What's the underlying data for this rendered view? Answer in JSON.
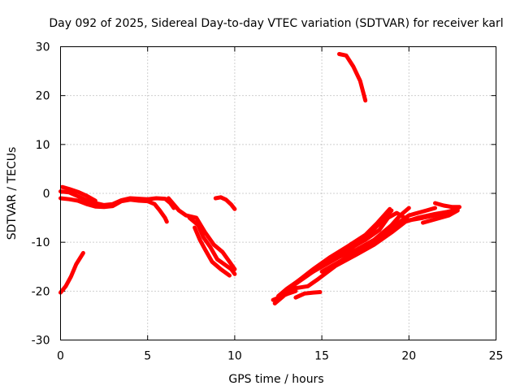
{
  "chart_data": {
    "type": "scatter",
    "title": "Day 092 of 2025, Sidereal Day-to-day VTEC variation (SDTVAR) for receiver karl",
    "xlabel": "GPS time / hours",
    "ylabel": "SDTVAR / TECUs",
    "xlim": [
      0,
      25
    ],
    "ylim": [
      -30,
      30
    ],
    "xticks": [
      0,
      5,
      10,
      15,
      20,
      25
    ],
    "xtick_labels": [
      "0",
      "5",
      "10",
      "15",
      "20",
      "25"
    ],
    "yticks": [
      -30,
      -20,
      -10,
      0,
      10,
      20,
      30
    ],
    "ytick_labels": [
      "-30",
      "-20",
      "-10",
      "0",
      "10",
      "20",
      "30"
    ],
    "grid": true,
    "series_color": "#ff0000",
    "tracks": [
      {
        "name": "track-a",
        "points": [
          [
            0.0,
            -20.3
          ],
          [
            0.3,
            -19.0
          ],
          [
            0.6,
            -17.0
          ],
          [
            0.9,
            -14.5
          ],
          [
            1.3,
            -12.2
          ]
        ]
      },
      {
        "name": "track-b",
        "points": [
          [
            0.0,
            0.4
          ],
          [
            0.5,
            0.2
          ],
          [
            1.0,
            -0.6
          ],
          [
            1.5,
            -1.4
          ],
          [
            2.0,
            -2.0
          ],
          [
            2.5,
            -2.4
          ],
          [
            3.0,
            -2.2
          ],
          [
            3.5,
            -1.4
          ],
          [
            4.0,
            -1.0
          ],
          [
            4.5,
            -1.1
          ],
          [
            5.0,
            -1.2
          ],
          [
            5.5,
            -1.0
          ],
          [
            6.0,
            -1.1
          ],
          [
            6.3,
            -2.0
          ],
          [
            6.5,
            -3.0
          ]
        ]
      },
      {
        "name": "track-c",
        "points": [
          [
            0.0,
            -1.0
          ],
          [
            0.5,
            -1.2
          ],
          [
            1.0,
            -1.5
          ],
          [
            1.5,
            -2.2
          ],
          [
            2.0,
            -2.7
          ],
          [
            2.5,
            -2.8
          ],
          [
            3.0,
            -2.6
          ],
          [
            3.5,
            -1.6
          ],
          [
            4.0,
            -1.3
          ],
          [
            4.5,
            -1.5
          ],
          [
            5.0,
            -1.6
          ],
          [
            5.4,
            -2.2
          ],
          [
            5.7,
            -3.5
          ],
          [
            6.0,
            -5.0
          ],
          [
            6.1,
            -5.8
          ]
        ]
      },
      {
        "name": "track-d",
        "points": [
          [
            0.1,
            1.3
          ],
          [
            0.5,
            0.9
          ],
          [
            1.0,
            0.3
          ],
          [
            1.5,
            -0.5
          ],
          [
            2.0,
            -1.5
          ]
        ]
      },
      {
        "name": "track-e",
        "points": [
          [
            6.2,
            -1.0
          ],
          [
            6.8,
            -3.5
          ],
          [
            7.2,
            -4.5
          ],
          [
            7.8,
            -5.0
          ],
          [
            8.3,
            -8.0
          ],
          [
            8.8,
            -10.5
          ],
          [
            9.3,
            -12.0
          ],
          [
            9.7,
            -14.0
          ],
          [
            10.0,
            -15.5
          ]
        ]
      },
      {
        "name": "track-f",
        "points": [
          [
            7.4,
            -5.0
          ],
          [
            7.9,
            -6.5
          ],
          [
            8.2,
            -9.0
          ],
          [
            8.6,
            -11.0
          ],
          [
            9.0,
            -13.5
          ],
          [
            9.4,
            -14.5
          ],
          [
            9.8,
            -15.5
          ],
          [
            10.0,
            -16.5
          ]
        ]
      },
      {
        "name": "track-g",
        "points": [
          [
            7.7,
            -7.0
          ],
          [
            8.0,
            -9.5
          ],
          [
            8.3,
            -11.5
          ],
          [
            8.7,
            -14.0
          ],
          [
            9.2,
            -15.5
          ],
          [
            9.7,
            -16.8
          ]
        ]
      },
      {
        "name": "track-h",
        "points": [
          [
            8.9,
            -1.0
          ],
          [
            9.2,
            -0.8
          ],
          [
            9.5,
            -1.3
          ],
          [
            9.8,
            -2.3
          ],
          [
            10.0,
            -3.2
          ]
        ]
      },
      {
        "name": "track-i",
        "points": [
          [
            16.0,
            28.5
          ],
          [
            16.4,
            28.2
          ],
          [
            16.8,
            26.0
          ],
          [
            17.2,
            23.0
          ],
          [
            17.5,
            19.0
          ]
        ]
      },
      {
        "name": "track-j",
        "points": [
          [
            12.3,
            -22.5
          ],
          [
            12.8,
            -21.0
          ],
          [
            13.5,
            -18.5
          ],
          [
            14.5,
            -16.0
          ],
          [
            15.5,
            -13.5
          ],
          [
            16.5,
            -11.5
          ],
          [
            17.5,
            -9.5
          ],
          [
            18.3,
            -7.5
          ],
          [
            18.8,
            -5.0
          ],
          [
            19.3,
            -4.0
          ],
          [
            20.0,
            -5.5
          ],
          [
            20.8,
            -5.0
          ],
          [
            21.5,
            -4.5
          ],
          [
            22.2,
            -3.8
          ],
          [
            22.8,
            -3.2
          ]
        ]
      },
      {
        "name": "track-k",
        "points": [
          [
            12.5,
            -21.0
          ],
          [
            13.0,
            -19.5
          ],
          [
            14.0,
            -17.0
          ],
          [
            15.0,
            -14.5
          ],
          [
            16.0,
            -12.5
          ],
          [
            17.0,
            -10.5
          ],
          [
            17.8,
            -8.0
          ],
          [
            18.5,
            -5.5
          ],
          [
            19.0,
            -3.5
          ]
        ]
      },
      {
        "name": "track-l",
        "points": [
          [
            13.0,
            -20.0
          ],
          [
            13.6,
            -18.0
          ],
          [
            14.5,
            -15.5
          ],
          [
            15.5,
            -13.0
          ],
          [
            16.5,
            -10.8
          ],
          [
            17.5,
            -8.5
          ],
          [
            18.2,
            -6.0
          ],
          [
            18.9,
            -3.2
          ]
        ]
      },
      {
        "name": "track-m",
        "points": [
          [
            13.3,
            -19.5
          ],
          [
            14.2,
            -19.0
          ],
          [
            14.8,
            -17.5
          ],
          [
            15.8,
            -14.8
          ],
          [
            17.0,
            -12.5
          ],
          [
            18.0,
            -10.5
          ],
          [
            19.0,
            -8.0
          ],
          [
            19.8,
            -5.8
          ],
          [
            20.5,
            -5.0
          ],
          [
            21.5,
            -4.2
          ],
          [
            22.5,
            -3.6
          ],
          [
            22.8,
            -3.0
          ]
        ]
      },
      {
        "name": "track-n",
        "points": [
          [
            14.0,
            -17.0
          ],
          [
            15.0,
            -15.0
          ],
          [
            16.0,
            -13.0
          ],
          [
            17.0,
            -11.5
          ],
          [
            18.0,
            -9.5
          ],
          [
            19.0,
            -6.5
          ],
          [
            19.5,
            -4.5
          ],
          [
            20.0,
            -3.0
          ]
        ]
      },
      {
        "name": "track-o",
        "points": [
          [
            15.0,
            -16.0
          ],
          [
            16.0,
            -14.0
          ],
          [
            17.0,
            -12.0
          ],
          [
            18.0,
            -10.0
          ],
          [
            19.0,
            -7.0
          ],
          [
            20.0,
            -4.5
          ],
          [
            21.0,
            -3.5
          ],
          [
            21.5,
            -3.0
          ]
        ]
      },
      {
        "name": "track-p",
        "points": [
          [
            20.8,
            -6.0
          ],
          [
            21.3,
            -5.5
          ],
          [
            21.8,
            -5.0
          ],
          [
            22.3,
            -4.5
          ],
          [
            22.8,
            -3.5
          ]
        ]
      },
      {
        "name": "track-q",
        "points": [
          [
            21.5,
            -2.0
          ],
          [
            22.0,
            -2.5
          ],
          [
            22.5,
            -2.8
          ],
          [
            22.9,
            -2.8
          ]
        ]
      },
      {
        "name": "track-r",
        "points": [
          [
            12.2,
            -21.8
          ],
          [
            12.6,
            -21.2
          ],
          [
            13.0,
            -20.6
          ],
          [
            13.5,
            -20.0
          ]
        ]
      },
      {
        "name": "track-s",
        "points": [
          [
            13.5,
            -21.3
          ],
          [
            14.0,
            -20.5
          ],
          [
            14.5,
            -20.3
          ],
          [
            14.9,
            -20.2
          ]
        ]
      }
    ]
  }
}
